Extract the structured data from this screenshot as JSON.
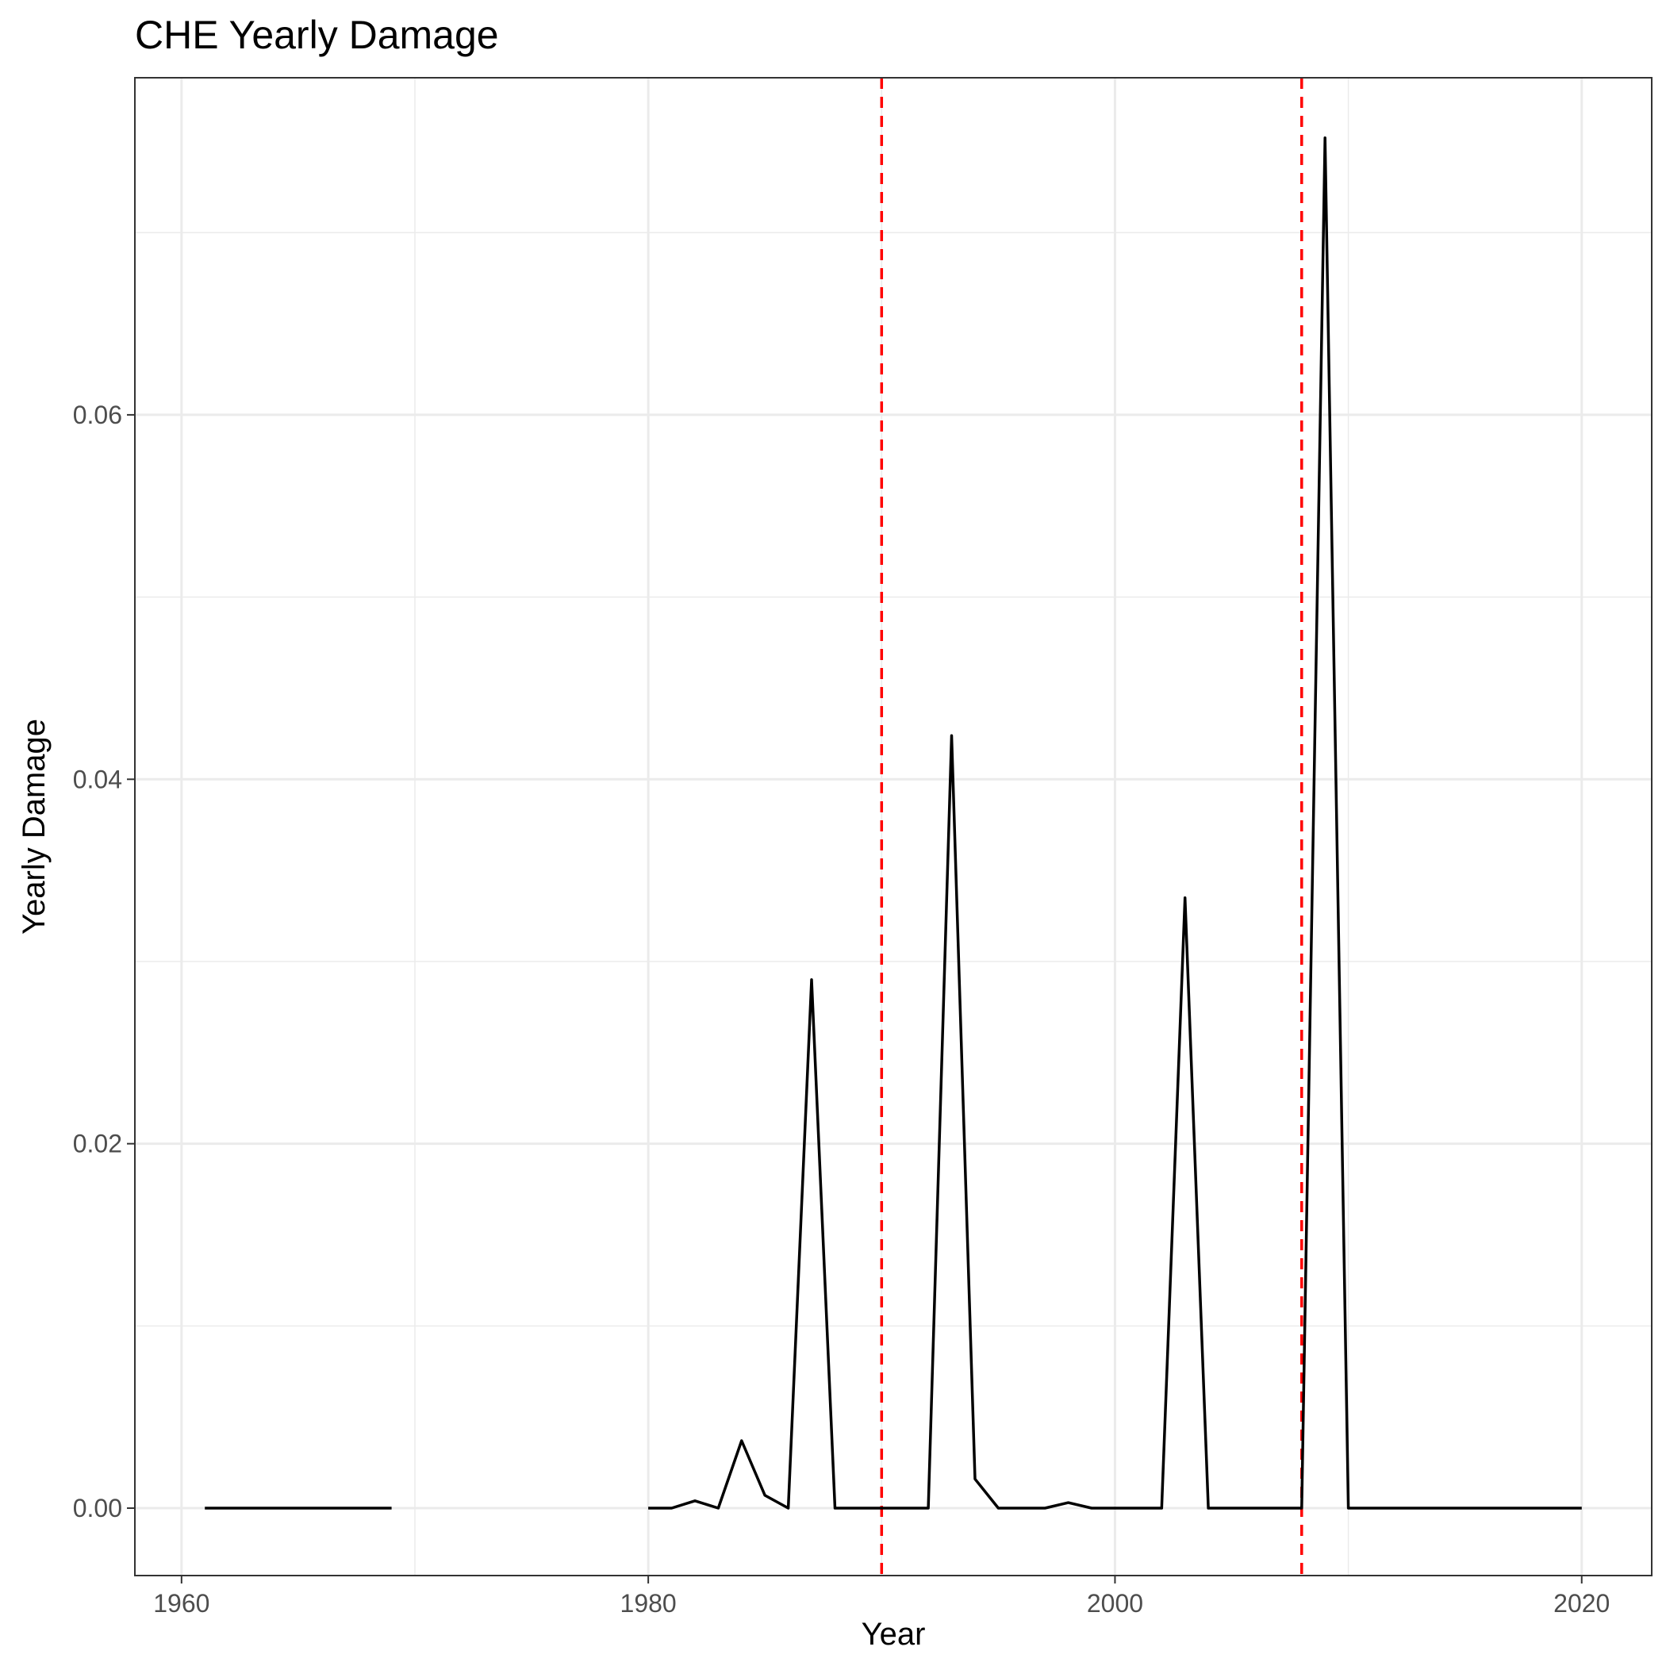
{
  "chart_data": {
    "type": "line",
    "title": "CHE Yearly Damage",
    "xlabel": "Year",
    "ylabel": "Yearly Damage",
    "xlim": [
      1958,
      2023
    ],
    "ylim": [
      -0.0037,
      0.0785
    ],
    "x_ticks": [
      1960,
      1980,
      2000,
      2020
    ],
    "x_tick_labels": [
      "1960",
      "1980",
      "2000",
      "2020"
    ],
    "y_ticks": [
      0.0,
      0.02,
      0.04,
      0.06
    ],
    "y_tick_labels": [
      "0.00",
      "0.02",
      "0.04",
      "0.06"
    ],
    "grid": true,
    "line_color": "#000000",
    "vlines": [
      {
        "x": 1990,
        "color": "#ff0000",
        "style": "dashed"
      },
      {
        "x": 2008,
        "color": "#ff0000",
        "style": "dashed"
      }
    ],
    "segments": [
      {
        "x": [
          1961,
          1962,
          1963,
          1964,
          1965,
          1966,
          1967,
          1968,
          1969
        ],
        "y": [
          0,
          0,
          0,
          0,
          0,
          0,
          0,
          0,
          0
        ]
      },
      {
        "x": [
          1980,
          1981,
          1982,
          1983,
          1984,
          1985,
          1986,
          1987,
          1988,
          1989,
          1990,
          1991,
          1992,
          1993,
          1994,
          1995,
          1996,
          1997,
          1998,
          1999,
          2000,
          2001,
          2002,
          2003,
          2004,
          2005,
          2006,
          2007,
          2008,
          2009,
          2010,
          2011,
          2012,
          2013,
          2014,
          2015,
          2016,
          2017,
          2018,
          2019,
          2020
        ],
        "y": [
          0,
          0,
          0.0004,
          0,
          0.0037,
          0.0007,
          0,
          0.029,
          0,
          0,
          0,
          0,
          0,
          0.0424,
          0.0016,
          0,
          0,
          0,
          0.0003,
          0,
          0,
          0,
          0,
          0.0335,
          0,
          0,
          0,
          0,
          0,
          0.0752,
          0,
          0,
          0,
          0,
          0,
          0,
          0,
          0,
          0,
          0,
          0
        ]
      }
    ]
  }
}
